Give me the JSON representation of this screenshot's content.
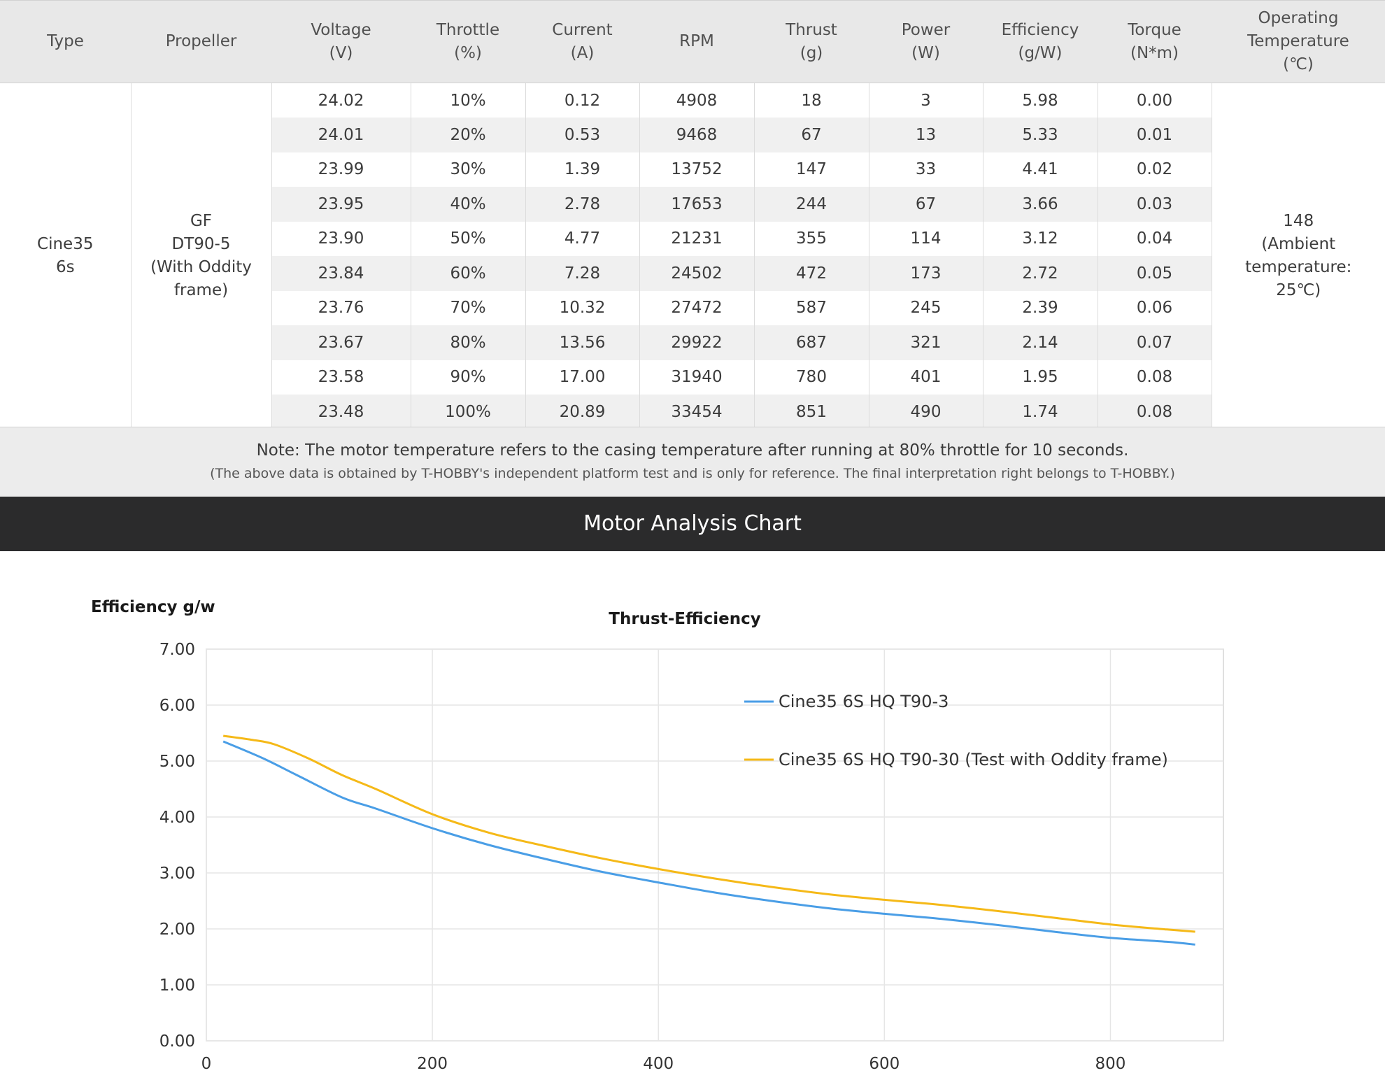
{
  "table": {
    "headers": [
      "Type",
      "Propeller",
      "Voltage\n(V)",
      "Throttle\n(%)",
      "Current\n(A)",
      "RPM",
      "Thrust\n(g)",
      "Power\n(W)",
      "Efficiency\n(g/W)",
      "Torque\n(N*m)",
      "Operating\nTemperature\n(℃)"
    ],
    "type": "Cine35\n6s",
    "propeller": "GF\nDT90-5\n(With Oddity\nframe)",
    "operating_temperature": "148\n(Ambient\ntemperature:\n25℃)",
    "rows": [
      [
        "24.02",
        "10%",
        "0.12",
        "4908",
        "18",
        "3",
        "5.98",
        "0.00"
      ],
      [
        "24.01",
        "20%",
        "0.53",
        "9468",
        "67",
        "13",
        "5.33",
        "0.01"
      ],
      [
        "23.99",
        "30%",
        "1.39",
        "13752",
        "147",
        "33",
        "4.41",
        "0.02"
      ],
      [
        "23.95",
        "40%",
        "2.78",
        "17653",
        "244",
        "67",
        "3.66",
        "0.03"
      ],
      [
        "23.90",
        "50%",
        "4.77",
        "21231",
        "355",
        "114",
        "3.12",
        "0.04"
      ],
      [
        "23.84",
        "60%",
        "7.28",
        "24502",
        "472",
        "173",
        "2.72",
        "0.05"
      ],
      [
        "23.76",
        "70%",
        "10.32",
        "27472",
        "587",
        "245",
        "2.39",
        "0.06"
      ],
      [
        "23.67",
        "80%",
        "13.56",
        "29922",
        "687",
        "321",
        "2.14",
        "0.07"
      ],
      [
        "23.58",
        "90%",
        "17.00",
        "31940",
        "780",
        "401",
        "1.95",
        "0.08"
      ],
      [
        "23.48",
        "100%",
        "20.89",
        "33454",
        "851",
        "490",
        "1.74",
        "0.08"
      ]
    ]
  },
  "note": {
    "main": "Note: The motor temperature refers to the casing temperature after running at 80% throttle for 10 seconds.",
    "sub": "(The above data is obtained by T-HOBBY's independent platform test and is only for reference. The final interpretation right belongs to T-HOBBY.)"
  },
  "section_title": "Motor Analysis Chart",
  "chart_data": {
    "type": "line",
    "title": "Thrust-Efficiency",
    "ylabel": "Efficiency g/w",
    "xlabel": "",
    "xlim": [
      0,
      900
    ],
    "ylim": [
      0,
      7
    ],
    "x_ticks": [
      "0",
      "200",
      "400",
      "600",
      "800"
    ],
    "y_ticks": [
      "0.00",
      "1.00",
      "2.00",
      "3.00",
      "4.00",
      "5.00",
      "6.00",
      "7.00"
    ],
    "grid": true,
    "legend_position": "top-right",
    "series": [
      {
        "name": "Cine35 6S HQ T90-3",
        "color": "#4a9ee6",
        "x": [
          15,
          50,
          80,
          120,
          150,
          200,
          250,
          300,
          350,
          400,
          450,
          500,
          550,
          600,
          650,
          700,
          750,
          800,
          850,
          875
        ],
        "y": [
          5.35,
          5.05,
          4.75,
          4.35,
          4.15,
          3.8,
          3.5,
          3.25,
          3.02,
          2.83,
          2.65,
          2.5,
          2.37,
          2.27,
          2.18,
          2.07,
          1.95,
          1.84,
          1.77,
          1.72
        ]
      },
      {
        "name": "Cine35 6S HQ T90-30 (Test with Oddity frame)",
        "color": "#f5b918",
        "x": [
          15,
          40,
          60,
          90,
          120,
          150,
          200,
          250,
          300,
          350,
          400,
          450,
          500,
          550,
          600,
          650,
          700,
          750,
          800,
          850,
          875
        ],
        "y": [
          5.45,
          5.38,
          5.3,
          5.05,
          4.75,
          4.5,
          4.05,
          3.72,
          3.48,
          3.26,
          3.07,
          2.9,
          2.75,
          2.62,
          2.52,
          2.43,
          2.32,
          2.2,
          2.08,
          1.99,
          1.95
        ]
      }
    ]
  }
}
